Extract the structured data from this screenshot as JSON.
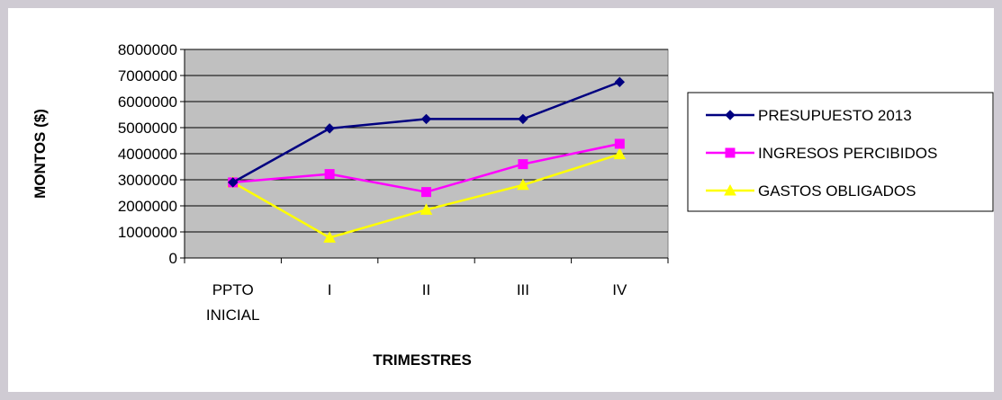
{
  "chart_data": {
    "type": "line",
    "title": "",
    "xlabel": "TRIMESTRES",
    "ylabel": "MONTOS ($)",
    "categories": [
      [
        "PPTO",
        "INICIAL"
      ],
      [
        "I"
      ],
      [
        "II"
      ],
      [
        "III"
      ],
      [
        "IV"
      ]
    ],
    "ylim": [
      0,
      8000000
    ],
    "yticks": [
      0,
      1000000,
      2000000,
      3000000,
      4000000,
      5000000,
      6000000,
      7000000,
      8000000
    ],
    "grid": true,
    "legend_position": "right",
    "plot_background": "#c0c0c0",
    "series": [
      {
        "name": "PRESUPUESTO 2013",
        "values": [
          2900000,
          4970000,
          5330000,
          5330000,
          6750000
        ],
        "color": "#000080",
        "marker": "diamond"
      },
      {
        "name": "INGRESOS PERCIBIDOS",
        "values": [
          2900000,
          3220000,
          2530000,
          3600000,
          4380000
        ],
        "color": "#ff00ff",
        "marker": "square"
      },
      {
        "name": "GASTOS OBLIGADOS",
        "values": [
          2900000,
          780000,
          1850000,
          2800000,
          3980000
        ],
        "color": "#ffff00",
        "marker": "triangle"
      }
    ]
  }
}
